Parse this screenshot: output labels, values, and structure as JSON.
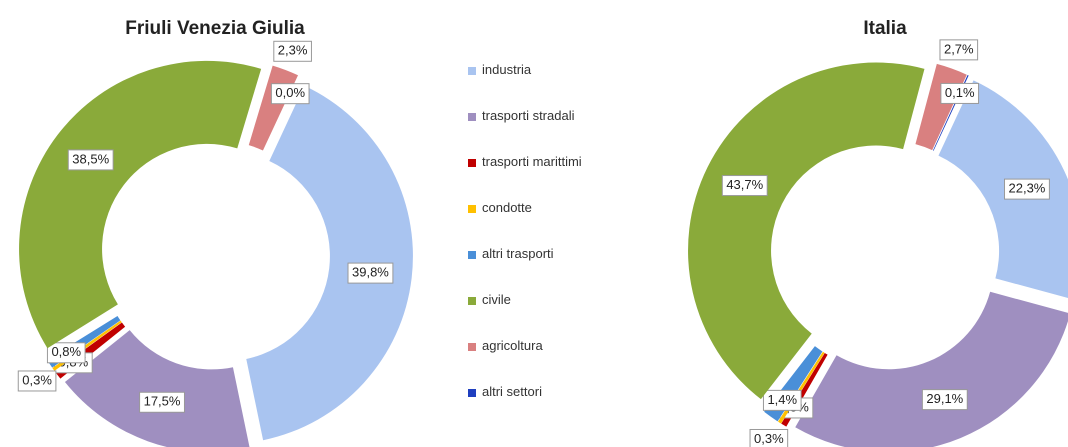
{
  "chart_data": [
    {
      "type": "donut",
      "title": "Friuli Venezia Giulia",
      "categories": [
        "industria",
        "trasporti stradali",
        "trasporti marittimi",
        "condotte",
        "altri trasporti",
        "civile",
        "agricoltura",
        "altri settori"
      ],
      "values": [
        39.8,
        17.5,
        0.8,
        0.3,
        0.8,
        38.5,
        2.3,
        0.0
      ],
      "value_labels": [
        "39,8%",
        "17,5%",
        "0,8%",
        "0,3%",
        "0,8%",
        "38,5%",
        "2,3%",
        "0,0%"
      ],
      "colors": [
        "#a9c4f0",
        "#9f8fc0",
        "#c00000",
        "#ffc000",
        "#4a8fd8",
        "#8aaa3a",
        "#d98080",
        "#1f3fbf"
      ]
    },
    {
      "type": "donut",
      "title": "Italia",
      "categories": [
        "industria",
        "trasporti stradali",
        "trasporti marittimi",
        "condotte",
        "altri trasporti",
        "civile",
        "agricoltura",
        "altri settori"
      ],
      "values": [
        22.3,
        29.1,
        0.5,
        0.3,
        1.4,
        43.7,
        2.7,
        0.1
      ],
      "value_labels": [
        "22,3%",
        "29,1%",
        "0,5%",
        "0,3%",
        "1,4%",
        "43,7%",
        "2,7%",
        "0,1%"
      ],
      "colors": [
        "#a9c4f0",
        "#9f8fc0",
        "#c00000",
        "#ffc000",
        "#4a8fd8",
        "#8aaa3a",
        "#d98080",
        "#1f3fbf"
      ]
    }
  ]
}
